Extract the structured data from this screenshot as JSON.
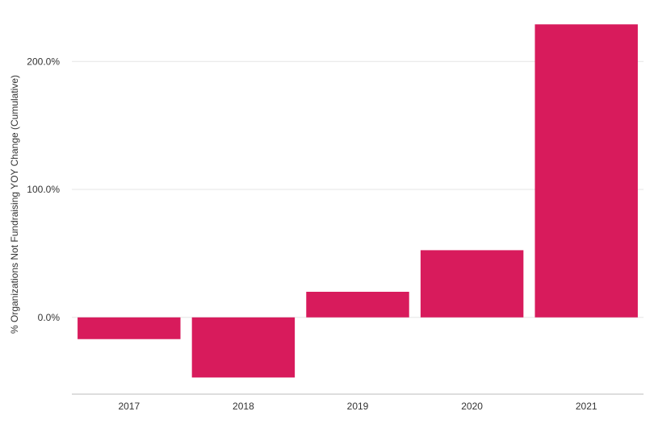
{
  "chart_data": {
    "type": "bar",
    "categories": [
      "2017",
      "2018",
      "2019",
      "2020",
      "2021"
    ],
    "series": [
      {
        "values": [
          -17.0,
          -47.0,
          20.0,
          52.5,
          229.0
        ]
      }
    ],
    "ylabel": "% Organizations Not Fundraising YOY Change (Cumulative)",
    "xlabel": "",
    "yticks": [
      0,
      100,
      200
    ],
    "ytick_labels": [
      "0.0%",
      "100.0%",
      "200.0%"
    ],
    "ylim": [
      -60,
      243
    ],
    "grid": true,
    "bar_color": "#d81b5c",
    "grid_color": "#e6e6e6",
    "axis_color": "#bdbdbd"
  }
}
